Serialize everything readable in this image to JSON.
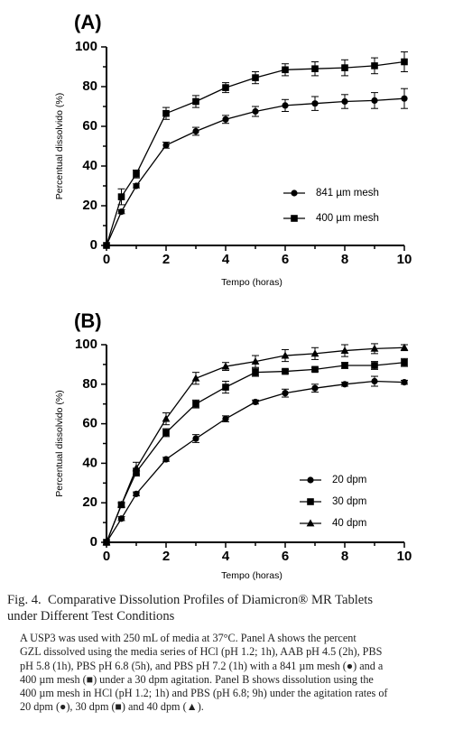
{
  "chart_data": [
    {
      "type": "line",
      "panel_label": "(A)",
      "xlabel": "Tempo (horas)",
      "ylabel": "Percentual dissolvido (%)",
      "xlim": [
        0,
        10
      ],
      "ylim": [
        0,
        100
      ],
      "xticks": [
        0,
        2,
        4,
        6,
        8,
        10
      ],
      "yticks": [
        0,
        20,
        40,
        60,
        80,
        100
      ],
      "legend_position": "bottom-right",
      "series": [
        {
          "name": "841 µm mesh",
          "marker": "circle",
          "x": [
            0,
            0.5,
            1,
            2,
            3,
            4,
            5,
            6,
            7,
            8,
            9,
            10
          ],
          "y": [
            0,
            17,
            30,
            50.5,
            57.5,
            63.5,
            67.5,
            70.5,
            71.5,
            72.5,
            73,
            74
          ],
          "err": [
            0,
            1,
            1,
            1.5,
            2,
            2,
            2.5,
            3,
            3.5,
            3.5,
            4,
            5
          ]
        },
        {
          "name": "400 µm mesh",
          "marker": "square",
          "x": [
            0,
            0.5,
            1,
            2,
            3,
            4,
            5,
            6,
            7,
            8,
            9,
            10
          ],
          "y": [
            0,
            24.5,
            36,
            66.5,
            72.5,
            79.5,
            84.5,
            88.5,
            89,
            89.5,
            90.5,
            92.5
          ],
          "err": [
            0,
            4,
            2,
            3,
            3,
            2.5,
            3,
            3,
            3.5,
            4,
            4,
            5
          ]
        }
      ]
    },
    {
      "type": "line",
      "panel_label": "(B)",
      "xlabel": "Tempo (horas)",
      "ylabel": "Percentual dissolvido (%)",
      "xlim": [
        0,
        10
      ],
      "ylim": [
        0,
        100
      ],
      "xticks": [
        0,
        2,
        4,
        6,
        8,
        10
      ],
      "yticks": [
        0,
        20,
        40,
        60,
        80,
        100
      ],
      "legend_position": "bottom-right",
      "series": [
        {
          "name": "20 dpm",
          "marker": "circle",
          "x": [
            0,
            0.5,
            1,
            2,
            3,
            4,
            5,
            6,
            7,
            8,
            9,
            10
          ],
          "y": [
            0,
            12,
            24.5,
            42,
            52.5,
            62.5,
            71,
            75.5,
            78,
            80,
            81.5,
            81
          ],
          "err": [
            0,
            1,
            1,
            1,
            2,
            1.5,
            1,
            2,
            2,
            1,
            2.5,
            1
          ]
        },
        {
          "name": "30 dpm",
          "marker": "square",
          "x": [
            0,
            0.5,
            1,
            2,
            3,
            4,
            5,
            6,
            7,
            8,
            9,
            10
          ],
          "y": [
            0,
            19,
            35.5,
            55.5,
            70,
            78.5,
            86,
            86.5,
            87.5,
            89.5,
            89.5,
            91
          ],
          "err": [
            0,
            1,
            2,
            2,
            2,
            3,
            2,
            1,
            1,
            1.5,
            2,
            2
          ]
        },
        {
          "name": "40 dpm",
          "marker": "triangle",
          "x": [
            0,
            0.5,
            1,
            2,
            3,
            4,
            5,
            6,
            7,
            8,
            9,
            10
          ],
          "y": [
            0,
            19,
            37.5,
            62.5,
            83,
            89,
            91.5,
            94.5,
            95.5,
            97,
            98,
            98.5
          ],
          "err": [
            0,
            1,
            3,
            3,
            3,
            2,
            3,
            3,
            3,
            3,
            2.5,
            1.5
          ]
        }
      ]
    }
  ],
  "caption": {
    "title_lines": [
      "Fig. 4.  Comparative Dissolution Profiles of Diamicron® MR Tablets",
      "under Different Test Conditions"
    ],
    "body_lines": [
      "A USP3 was used with 250 mL of media at 37°C. Panel A shows the percent",
      "GZL dissolved using the media series of HCl (pH 1.2; 1h), AAB pH 4.5 (2h), PBS",
      "pH 5.8 (1h), PBS pH 6.8 (5h), and PBS pH 7.2 (1h) with a 841 µm mesh (●) and a",
      "400 µm mesh (■) under a 30 dpm agitation. Panel B shows dissolution using the",
      "400 µm mesh in HCl (pH 1.2; 1h) and PBS (pH 6.8; 9h) under the agitation rates of",
      "20 dpm (●), 30 dpm (■) and 40 dpm (▲)."
    ]
  }
}
